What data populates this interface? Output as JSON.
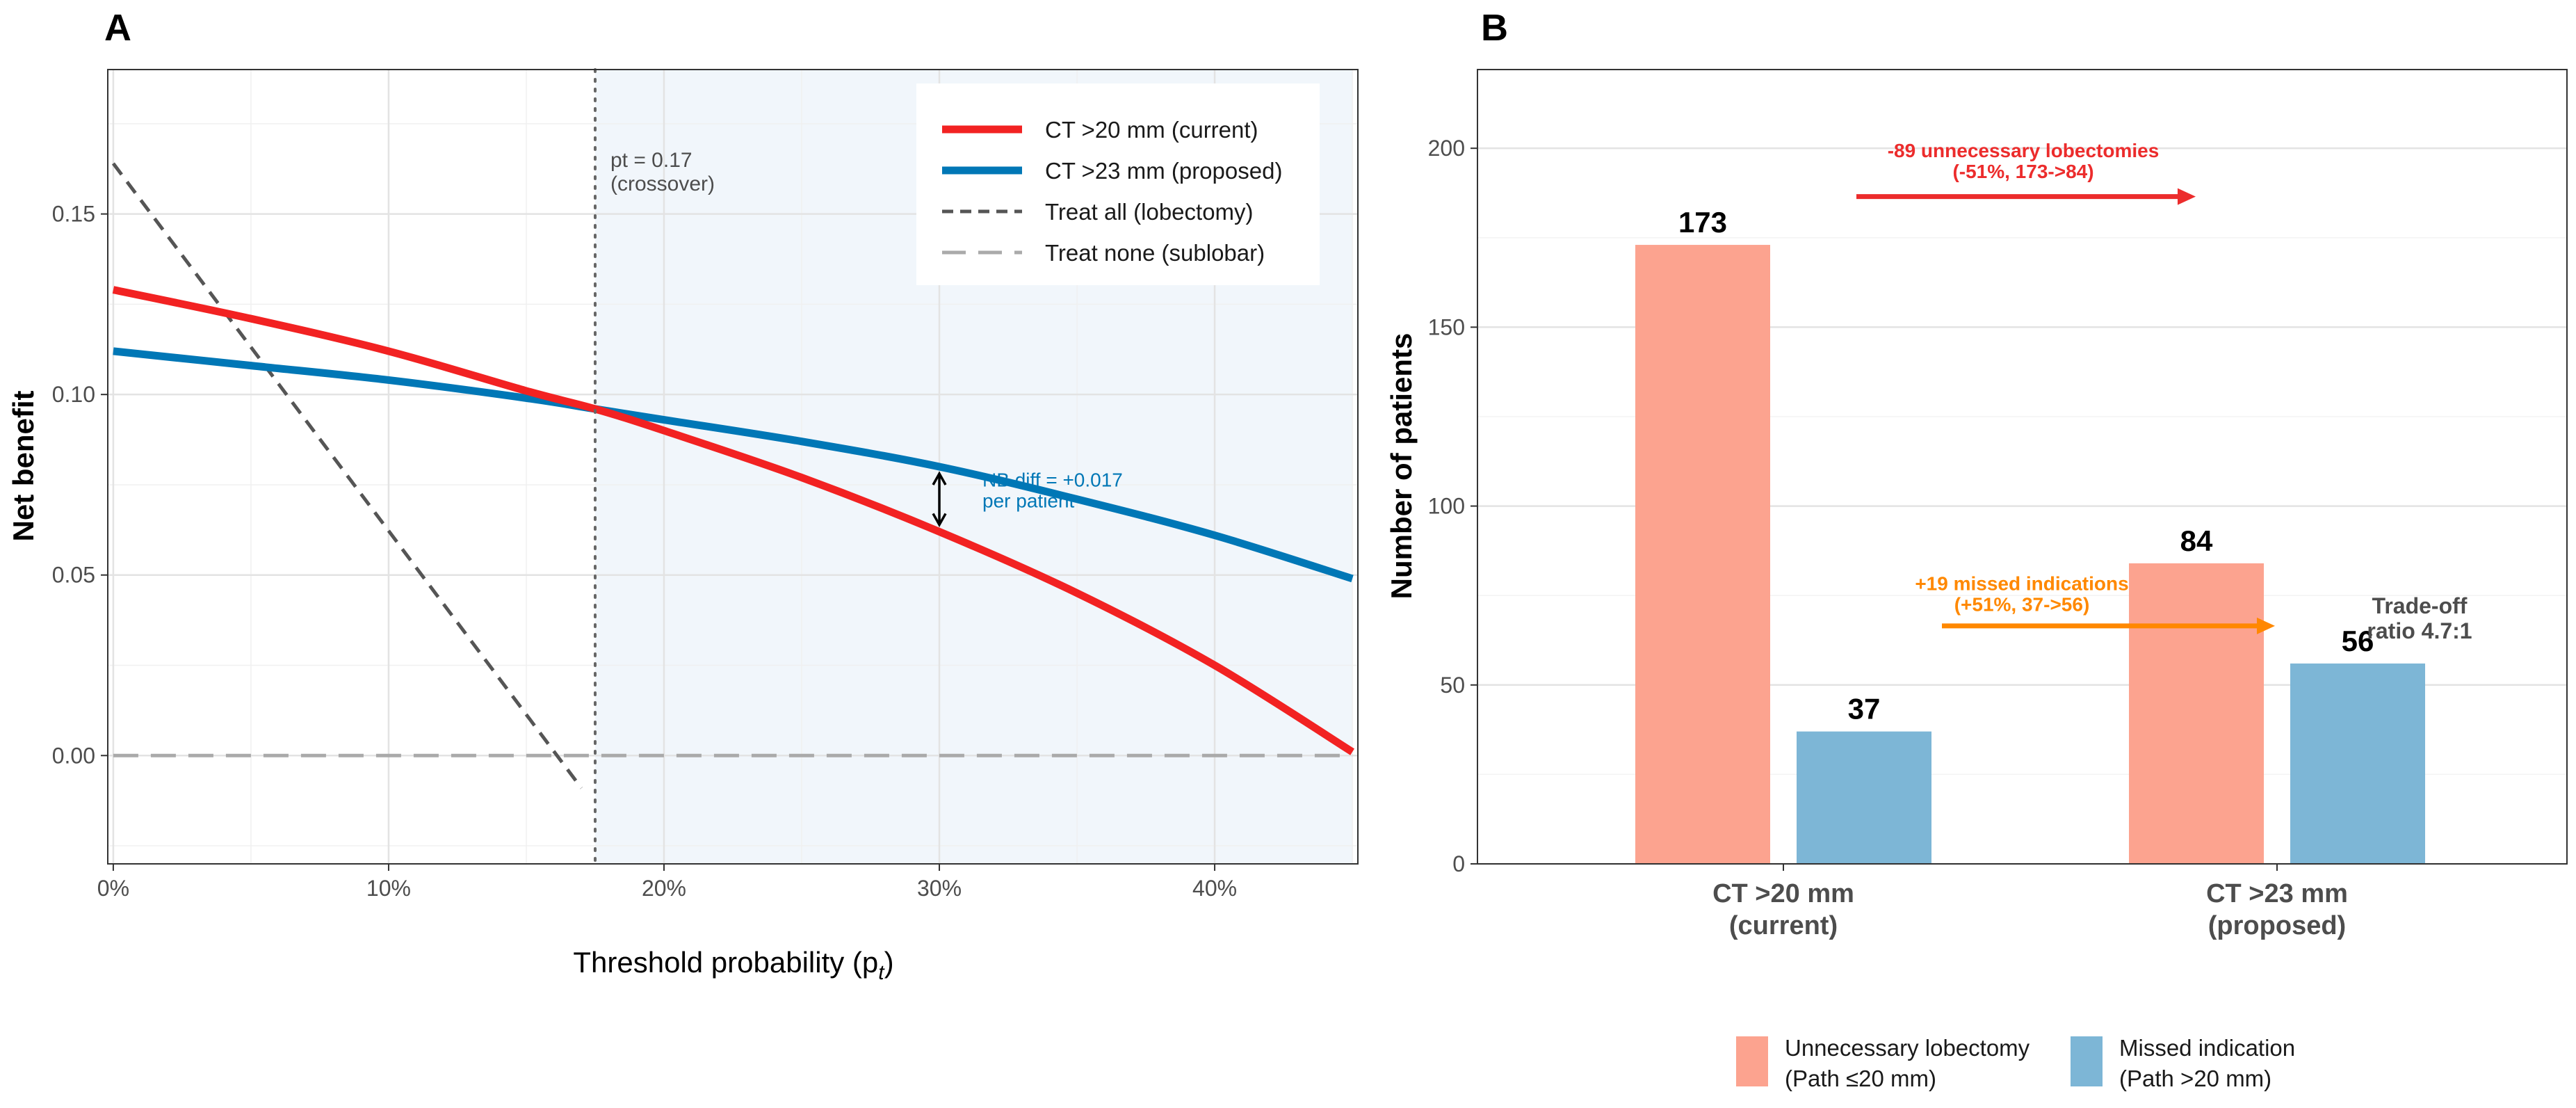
{
  "panel_a": {
    "letter": "A",
    "annotations": {
      "crossover_line1": "pt = 0.17",
      "crossover_line2": "(crossover)",
      "nb_diff_line1": "NB diff = +0.017",
      "nb_diff_line2": "per patient"
    }
  },
  "panel_b": {
    "letter": "B",
    "annotations": {
      "lobectomy_line1": "-89 unnecessary lobectomies",
      "lobectomy_line2": "(-51%, 173->84)",
      "missed_line1": "+19 missed indications",
      "missed_line2": "(+51%, 37->56)",
      "tradeoff_line1": "Trade-off",
      "tradeoff_line2": "ratio 4.7:1"
    },
    "legend": [
      {
        "line1": "Unnecessary lobectomy",
        "line2": "(Path ≤20 mm)",
        "color": "#FCA38F"
      },
      {
        "line1": "Missed indication",
        "line2": "(Path >20 mm)",
        "color": "#7DB6D6"
      }
    ]
  },
  "colors": {
    "current": "#F22222",
    "proposed": "#0077B6",
    "treat_all": "#555555",
    "treat_none": "#AAAAAA",
    "shade": "#F1F6FB",
    "bar_lobectomy": "#FCA38F",
    "bar_missed": "#7DB6D6",
    "arrow_lobectomy": "#EC2C2C",
    "arrow_missed": "#FF8800"
  },
  "chart_data": [
    {
      "type": "line",
      "panel": "A",
      "xlabel": "Threshold probability (p",
      "xlabel_sub": "t",
      "xlabel_close": ")",
      "ylabel": "Net benefit",
      "xlim": [
        -0.002,
        0.452
      ],
      "ylim": [
        -0.03,
        0.19
      ],
      "x_ticks": [
        0,
        0.1,
        0.2,
        0.3,
        0.4
      ],
      "x_tick_labels": [
        "0%",
        "10%",
        "20%",
        "30%",
        "40%"
      ],
      "y_ticks": [
        0,
        0.05,
        0.1,
        0.15
      ],
      "y_tick_labels": [
        "0.00",
        "0.05",
        "0.10",
        "0.15"
      ],
      "grid": true,
      "shaded_region_x": [
        0.175,
        0.45
      ],
      "crossover_x": 0.175,
      "nb_diff_at_x": 0.3,
      "series": [
        {
          "name": "CT >20 mm (current)",
          "style": "solid",
          "color": "#F22222",
          "x": [
            0,
            0.05,
            0.1,
            0.15,
            0.175,
            0.2,
            0.25,
            0.3,
            0.35,
            0.4,
            0.45
          ],
          "y": [
            0.129,
            0.121,
            0.112,
            0.101,
            0.096,
            0.09,
            0.077,
            0.062,
            0.045,
            0.025,
            0.001
          ]
        },
        {
          "name": "CT >23 mm (proposed)",
          "style": "solid",
          "color": "#0077B6",
          "x": [
            0,
            0.05,
            0.1,
            0.15,
            0.175,
            0.2,
            0.25,
            0.3,
            0.35,
            0.4,
            0.45
          ],
          "y": [
            0.112,
            0.108,
            0.104,
            0.099,
            0.096,
            0.093,
            0.087,
            0.08,
            0.071,
            0.061,
            0.049
          ]
        },
        {
          "name": "Treat all (lobectomy)",
          "style": "dashed",
          "color": "#555555",
          "x": [
            0,
            0.17
          ],
          "y": [
            0.164,
            -0.009
          ]
        },
        {
          "name": "Treat none (sublobar)",
          "style": "longdash",
          "color": "#AAAAAA",
          "x": [
            0,
            0.45
          ],
          "y": [
            0,
            0
          ]
        }
      ]
    },
    {
      "type": "bar",
      "panel": "B",
      "ylabel": "Number of patients",
      "ylim": [
        0,
        222
      ],
      "y_ticks": [
        0,
        50,
        100,
        150,
        200
      ],
      "y_tick_labels": [
        "0",
        "50",
        "100",
        "150",
        "200"
      ],
      "categories": [
        {
          "line1": "CT >20 mm",
          "line2": "(current)"
        },
        {
          "line1": "CT >23 mm",
          "line2": "(proposed)"
        }
      ],
      "series": [
        {
          "name": "Unnecessary lobectomy (Path ≤20 mm)",
          "color": "#FCA38F",
          "values": [
            173,
            84
          ]
        },
        {
          "name": "Missed indication (Path >20 mm)",
          "color": "#7DB6D6",
          "values": [
            37,
            56
          ]
        }
      ],
      "data_labels": [
        [
          "173",
          "37"
        ],
        [
          "84",
          "56"
        ]
      ]
    }
  ]
}
